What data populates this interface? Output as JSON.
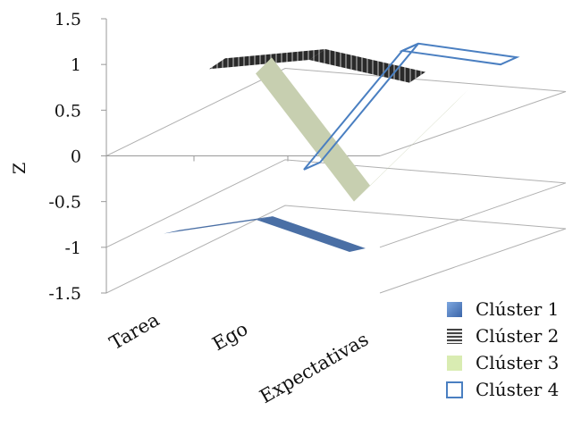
{
  "chart_data": {
    "type": "3d-line",
    "categories": [
      "Tarea",
      "Ego",
      "Expectativas"
    ],
    "ylabel": "Z",
    "ylim": [
      -1.5,
      1.5
    ],
    "yticks": [
      "1.5",
      "1",
      "0.5",
      "0",
      "-0.5",
      "-1",
      "-1.5"
    ],
    "yticks_values": [
      1.5,
      1,
      0.5,
      0,
      -0.5,
      -1,
      -1.5
    ],
    "grid": true,
    "legend_position": "bottom-right",
    "series": [
      {
        "name": "Clúster 1",
        "values": [
          -0.85,
          -0.7,
          -1.05
        ],
        "style": "solid",
        "color": "#4a6fa5"
      },
      {
        "name": "Clúster 2",
        "values": [
          0.95,
          1.05,
          0.8
        ],
        "style": "striped",
        "color": "#333333"
      },
      {
        "name": "Clúster 3",
        "values": [
          0.9,
          -0.5,
          0.55
        ],
        "style": "solid",
        "color": "#c7cfb0"
      },
      {
        "name": "Clúster 4",
        "values": [
          -0.15,
          1.15,
          1.0
        ],
        "style": "outline",
        "color": "#4a7fc1"
      }
    ]
  }
}
